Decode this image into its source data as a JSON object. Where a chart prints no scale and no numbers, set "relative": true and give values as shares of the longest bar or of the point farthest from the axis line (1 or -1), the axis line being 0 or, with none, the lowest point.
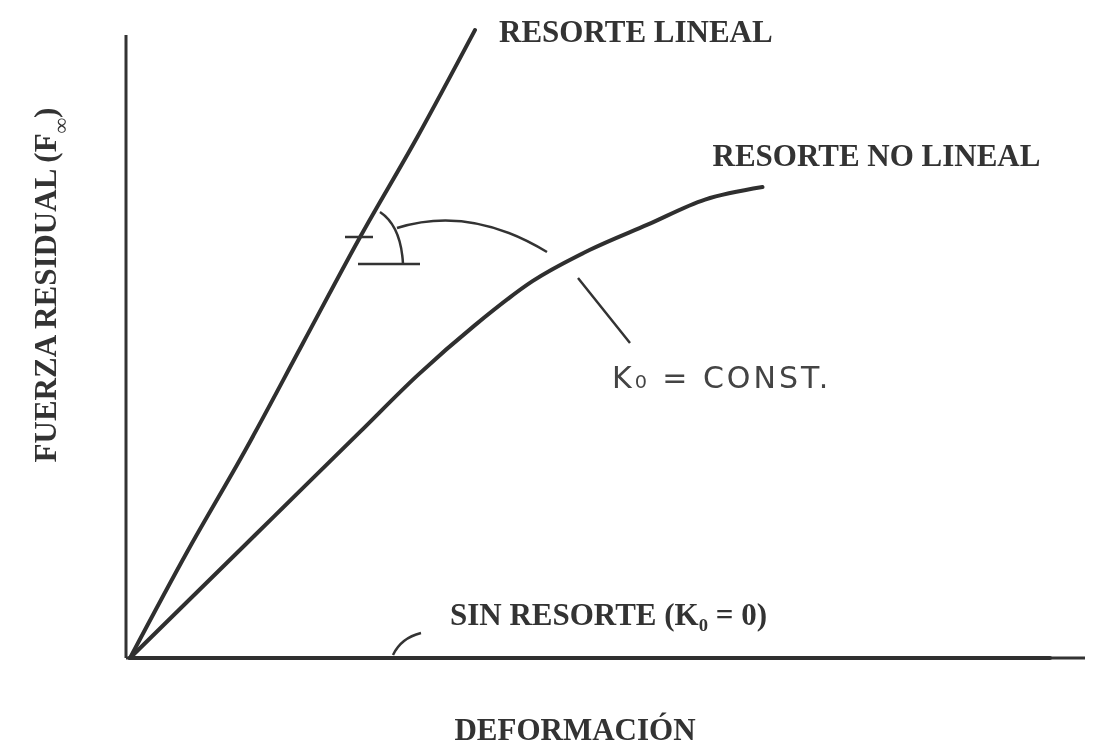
{
  "chart_data": {
    "type": "line",
    "relative": true,
    "xlabel": "DEFORMACIÓN",
    "ylabel": "FUERZA RESIDUAL (F$_{∞}$)",
    "categories": [
      null,
      null,
      null,
      null,
      null,
      null,
      null,
      null,
      null,
      null,
      null,
      null,
      null,
      null,
      null,
      null,
      null
    ],
    "series": [
      {
        "name": "RESORTE LINEAL",
        "color": "#2f2f2f",
        "values": [
          0,
          0.17,
          0.33,
          0.5,
          0.67,
          0.83,
          1,
          null,
          null,
          null,
          null,
          null,
          null,
          null,
          null,
          null,
          null
        ]
      },
      {
        "name": "RESORTE NO LINEAL",
        "color": "#2f2f2f",
        "values": [
          0,
          0.09,
          0.18,
          0.27,
          0.36,
          0.45,
          0.53,
          0.6,
          0.65,
          0.69,
          0.73,
          0.75,
          null,
          null,
          null,
          null,
          null
        ]
      },
      {
        "name": "SIN RESORTE (K₀ = 0)",
        "color": "#2f2f2f",
        "values": [
          0,
          0,
          0,
          0,
          0,
          0,
          0,
          0,
          0,
          0,
          0,
          0,
          0,
          0,
          0,
          0,
          0
        ]
      }
    ],
    "annotations": [
      "K₀ = CONST."
    ]
  }
}
